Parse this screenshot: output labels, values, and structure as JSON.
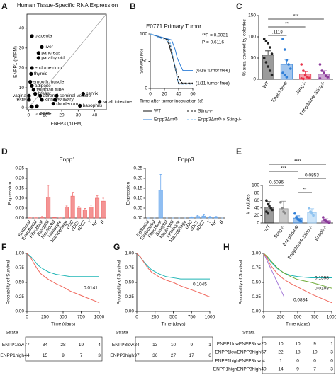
{
  "chart_data": [
    {
      "panel": "A",
      "type": "scatter",
      "title": "Human Tissue-Specific RNA Expression",
      "x_label": "ENPP3 (nTPM)",
      "y_label": "ENPP1 (nTPM)",
      "xlim": [
        -1,
        47
      ],
      "xticks": [
        0,
        10,
        20,
        30,
        40
      ],
      "ylim": [
        -1,
        47
      ],
      "yticks": [
        0,
        10,
        20,
        30,
        40
      ],
      "x": [
        2,
        8,
        6,
        6,
        2,
        1.5,
        1,
        2,
        3,
        4,
        0.3,
        0.3,
        7,
        8,
        17,
        16,
        15,
        33,
        43,
        31,
        2,
        5
      ],
      "values": [
        36,
        30.5,
        27.5,
        25,
        20,
        17,
        13,
        11,
        9,
        7,
        6,
        4,
        6,
        4,
        6,
        4,
        2,
        7,
        3,
        1,
        0.5,
        0.8
      ],
      "point_labels": [
        "placenta",
        "liver",
        "pancreas",
        "parathyroid",
        "endometrium",
        "thyroid",
        "smooth muscle",
        "adipose",
        "fallopian tube",
        "breast",
        "vagina",
        "testis",
        "adrenal",
        "kidney",
        "seminal vesicle",
        "salivary",
        "duodenum",
        "cervix",
        "small intestine",
        "basophils",
        "prostate",
        "colon"
      ],
      "color": "#000000"
    },
    {
      "panel": "B",
      "type": "line",
      "title": "E0771 Primary Tumor",
      "x_label": "Time after tumor inoculation (d)",
      "y_label": "Survival (%)",
      "xlim": [
        0,
        60
      ],
      "xticks": [
        0,
        20,
        40,
        60
      ],
      "ylim": [
        0,
        100
      ],
      "yticks": [
        0,
        50,
        100
      ],
      "series": [
        {
          "name": "WT",
          "color": "#111111",
          "dashed": false,
          "x": [
            0,
            22,
            26,
            28,
            30,
            32,
            34,
            36,
            38,
            40,
            60
          ],
          "values": [
            100,
            91,
            82,
            73,
            64,
            55,
            45,
            36,
            18,
            9,
            9
          ]
        },
        {
          "name": "Sting-/-",
          "color": "#111111",
          "dashed": true,
          "x": [
            0,
            25,
            30,
            33,
            36,
            40,
            45,
            60
          ],
          "values": [
            100,
            90,
            70,
            50,
            30,
            20,
            10,
            10
          ]
        },
        {
          "name": "Enpp3ΔmΦ",
          "color": "#2f7fd8",
          "dashed": false,
          "x": [
            0,
            30,
            35,
            38,
            42,
            46,
            60
          ],
          "values": [
            100,
            89,
            72,
            56,
            44,
            33,
            33
          ]
        },
        {
          "name": "Enpp3ΔmΦ x Sting-/-",
          "color": "#6db4f0",
          "dashed": true,
          "x": [
            0,
            28,
            32,
            35,
            38,
            40,
            60
          ],
          "values": [
            100,
            85,
            60,
            40,
            20,
            8,
            8
          ]
        }
      ],
      "annotations": [
        "**P = 0.0031",
        "P = 0.6116",
        "(6/18 tumor free)",
        "(1/11 tumor free)"
      ]
    },
    {
      "panel": "C",
      "type": "bar",
      "y_label": "% area covered by colonies",
      "categories": [
        "WT",
        "Enpp3ΔmΦ",
        "Sting-/-",
        "Enpp3ΔmΦ Sting-/-"
      ],
      "values": [
        57,
        35,
        12,
        12
      ],
      "errors": [
        10,
        12,
        6,
        8
      ],
      "colors": [
        "#222222",
        "#2f7fd8",
        "#e8334a",
        "#8b3a9a"
      ],
      "points": [
        [
          95,
          90,
          85,
          75,
          60,
          50,
          40,
          30,
          20,
          10
        ],
        [
          95,
          70,
          45,
          35,
          25,
          15,
          10,
          5
        ],
        [
          35,
          20,
          10,
          5,
          3,
          2,
          1
        ],
        [
          35,
          20,
          15,
          8,
          5,
          2
        ]
      ],
      "ylim": [
        0,
        150
      ],
      "yticks": [
        0,
        50,
        100,
        150
      ],
      "annotations": [
        ".1118",
        "**",
        "***"
      ]
    },
    {
      "panel": "D",
      "type": "bar",
      "title": "Enpp1",
      "y_label": "Expression",
      "categories": [
        "Epithelial",
        "Endothelial",
        "Fibroblast",
        "Basophil",
        "Neutrophil",
        "Monocyte",
        "Macrophage",
        "pDC",
        "cDC1",
        "cDC2",
        "T",
        "NK",
        "B"
      ],
      "values": [
        0.001,
        0.001,
        0.005,
        0.105,
        0.003,
        0.001,
        0.055,
        0.11,
        0.05,
        0.04,
        0.055,
        0.1,
        0.085
      ],
      "errors": [
        0,
        0,
        0.003,
        0.06,
        0.002,
        0,
        0.006,
        0.02,
        0.008,
        0.008,
        0.01,
        0.012,
        0.015
      ],
      "color": "#f07070",
      "ylim": [
        0,
        0.25
      ],
      "yticks": [
        {
          "value": 0,
          "label": "0.00"
        },
        {
          "value": 0.05,
          "label": "0.05"
        },
        {
          "value": 0.1,
          "label": "0.10"
        },
        {
          "value": 0.15,
          "label": "0.15"
        },
        {
          "value": 0.2,
          "label": "0.20"
        },
        {
          "value": 0.25,
          "label": "0.25"
        }
      ]
    },
    {
      "type": "bar",
      "title": "Enpp3",
      "y_label": "Expression",
      "categories": [
        "Epithelial",
        "Endothelial",
        "Fibroblast",
        "Basophil",
        "Neutrophil",
        "Monocyte",
        "Macrophage",
        "pDC",
        "cDC1",
        "cDC2",
        "T",
        "NK",
        "B"
      ],
      "values": [
        0,
        0,
        0.14,
        0,
        0,
        0,
        0,
        0.002,
        0.008,
        0.01,
        0.004,
        0.004,
        0
      ],
      "errors": [
        0,
        0,
        0.08,
        0,
        0,
        0,
        0,
        0.004,
        0.005,
        0.006,
        0.004,
        0.004,
        0
      ],
      "color": "#6aa8ee",
      "ylim": [
        0,
        0.25
      ],
      "yticks": [
        {
          "value": 0,
          "label": "0.00"
        },
        {
          "value": 0.05,
          "label": "0.05"
        },
        {
          "value": 0.1,
          "label": "0.10"
        },
        {
          "value": 0.15,
          "label": "0.15"
        },
        {
          "value": 0.2,
          "label": "0.20"
        },
        {
          "value": 0.25,
          "label": "0.25"
        }
      ]
    },
    {
      "panel": "E",
      "type": "bar",
      "y_label": "# nodules",
      "categories": [
        "WT",
        "Sting-/-",
        "Enpp3ΔmΦ",
        "Enpp3ΔmΦ Sting-/-",
        "Enpp3-/-"
      ],
      "values": [
        42,
        38,
        13,
        28,
        6
      ],
      "errors": [
        15,
        20,
        6,
        10,
        5
      ],
      "colors": [
        "#222222",
        "#888888",
        "#2f7fd8",
        "#8fc3f0",
        "#8b3a9a"
      ],
      "points": [
        [
          60,
          50,
          45,
          40,
          35,
          30,
          25
        ],
        [
          55,
          40,
          30,
          25
        ],
        [
          25,
          15,
          10,
          8,
          5
        ],
        [
          40,
          30,
          25,
          20
        ],
        [
          15,
          8,
          5,
          3,
          1
        ]
      ],
      "ylim": [
        0,
        100
      ],
      "yticks": [
        0,
        20,
        40,
        60,
        80,
        100
      ],
      "annotations": [
        "****",
        "***",
        "0.0853",
        "0.5096",
        "**"
      ]
    },
    {
      "panel": "F",
      "type": "line",
      "x_label": "Time (days)",
      "y_label": "Probability of Survival",
      "xlim": [
        0,
        1000
      ],
      "xticks": [
        0,
        250,
        500,
        750,
        1000
      ],
      "ylim": [
        0,
        1
      ],
      "yticks": [
        {
          "value": 0,
          "label": "0.00"
        },
        {
          "value": 0.25,
          "label": "0.25"
        },
        {
          "value": 0.5,
          "label": "0.50"
        },
        {
          "value": 0.75,
          "label": "0.75"
        },
        {
          "value": 1,
          "label": "1.00"
        }
      ],
      "series": [
        {
          "name": "ENPP1low",
          "color": "#1fb5b5",
          "x": [
            0,
            50,
            100,
            150,
            200,
            300,
            400,
            500,
            600,
            800,
            1000
          ],
          "values": [
            1,
            0.95,
            0.88,
            0.8,
            0.75,
            0.68,
            0.64,
            0.62,
            0.6,
            0.6,
            0.6
          ]
        },
        {
          "name": "ENPP1high",
          "color": "#f0655a",
          "x": [
            0,
            50,
            100,
            150,
            200,
            300,
            400,
            500,
            600,
            800,
            1000
          ],
          "values": [
            1,
            0.93,
            0.82,
            0.72,
            0.64,
            0.55,
            0.48,
            0.42,
            0.35,
            0.25,
            0.15
          ]
        }
      ],
      "annotations": [
        "0.0141"
      ],
      "risk_table": {
        "title": "Strata",
        "rows": [
          [
            77,
            34,
            28,
            19,
            4
          ],
          [
            44,
            15,
            9,
            7,
            3
          ]
        ]
      }
    },
    {
      "panel": "G",
      "type": "line",
      "x_label": "Time (days)",
      "y_label": "Probability of Survival",
      "xlim": [
        0,
        1000
      ],
      "xticks": [
        0,
        250,
        500,
        750,
        1000
      ],
      "ylim": [
        0,
        1
      ],
      "yticks": [
        {
          "value": 0,
          "label": "0.00"
        },
        {
          "value": 0.25,
          "label": "0.25"
        },
        {
          "value": 0.5,
          "label": "0.50"
        },
        {
          "value": 0.75,
          "label": "0.75"
        },
        {
          "value": 1,
          "label": "1.00"
        }
      ],
      "series": [
        {
          "name": "ENPP3low",
          "color": "#1fb5b5",
          "x": [
            0,
            50,
            100,
            150,
            200,
            300,
            400,
            500,
            600,
            800,
            1000
          ],
          "values": [
            1,
            0.93,
            0.85,
            0.78,
            0.72,
            0.65,
            0.6,
            0.58,
            0.56,
            0.56,
            0.56
          ]
        },
        {
          "name": "ENPP3high",
          "color": "#f0655a",
          "x": [
            0,
            50,
            100,
            150,
            200,
            300,
            400,
            500,
            600,
            800,
            1000
          ],
          "values": [
            1,
            0.94,
            0.84,
            0.75,
            0.68,
            0.6,
            0.54,
            0.5,
            0.44,
            0.35,
            0.25
          ]
        }
      ],
      "annotations": [
        "0.1045"
      ],
      "risk_table": {
        "title": "Strata",
        "rows": [
          [
            24,
            13,
            10,
            9,
            1
          ],
          [
            97,
            36,
            27,
            17,
            6
          ]
        ]
      }
    },
    {
      "panel": "H",
      "type": "line",
      "x_label": "Time (days)",
      "y_label": "Probability of Survival",
      "xlim": [
        0,
        1000
      ],
      "xticks": [
        0,
        250,
        500,
        750,
        1000
      ],
      "ylim": [
        0,
        1
      ],
      "yticks": [
        {
          "value": 0,
          "label": "0.00"
        },
        {
          "value": 0.25,
          "label": "0.25"
        },
        {
          "value": 0.5,
          "label": "0.50"
        },
        {
          "value": 0.75,
          "label": "0.75"
        },
        {
          "value": 1,
          "label": "1.00"
        }
      ],
      "series": [
        {
          "name": "ENPP1lowENPP3low",
          "color": "#1fb5b5",
          "x": [
            0,
            50,
            100,
            200,
            300,
            400,
            500,
            700,
            1000
          ],
          "values": [
            1,
            0.94,
            0.86,
            0.74,
            0.66,
            0.62,
            0.6,
            0.58,
            0.58
          ]
        },
        {
          "name": "ENPP1lowENPP3high",
          "color": "#6aa832",
          "x": [
            0,
            50,
            100,
            200,
            300,
            400,
            500,
            700,
            1000
          ],
          "values": [
            1,
            0.95,
            0.88,
            0.75,
            0.66,
            0.6,
            0.55,
            0.5,
            0.4
          ]
        },
        {
          "name": "ENPP1highENPP3low",
          "color": "#a57bd8",
          "x": [
            0,
            100,
            200,
            300,
            500,
            600
          ],
          "values": [
            1,
            0.75,
            0.5,
            0.25,
            0.25,
            0.25
          ]
        },
        {
          "name": "ENPP1highENPP3high",
          "color": "#f0655a",
          "x": [
            0,
            50,
            100,
            200,
            300,
            400,
            500,
            700,
            1000
          ],
          "values": [
            1,
            0.92,
            0.8,
            0.65,
            0.55,
            0.48,
            0.42,
            0.3,
            0.15
          ]
        }
      ],
      "annotations": [
        "0.1598",
        "0.0108",
        "0.0884"
      ],
      "risk_table": {
        "title": "Strata",
        "rows": [
          [
            20,
            10,
            10,
            9,
            1
          ],
          [
            57,
            22,
            18,
            10,
            3
          ],
          [
            4,
            1,
            0,
            0,
            0
          ],
          [
            40,
            14,
            9,
            7,
            3
          ]
        ]
      }
    }
  ]
}
